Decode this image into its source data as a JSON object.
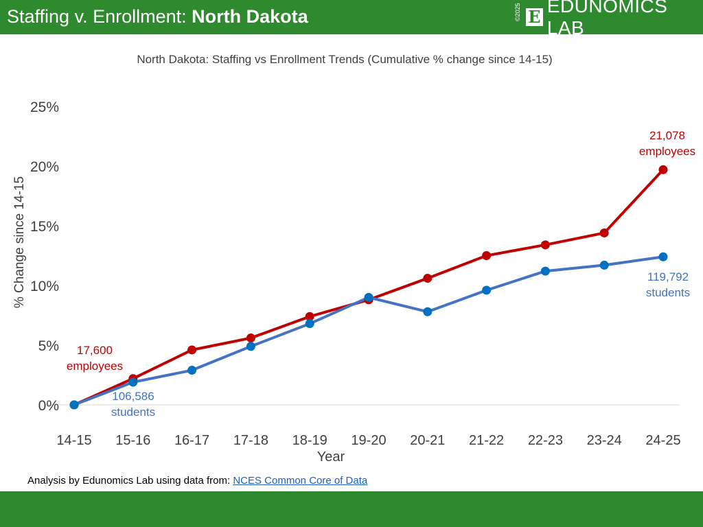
{
  "header": {
    "title_prefix": "Staffing v. Enrollment: ",
    "title_state": "North Dakota",
    "logo_copyright": "©2025",
    "logo_letter": "E",
    "logo_name": "EDUNOMICS LAB"
  },
  "source": {
    "prefix": "Analysis by Edunomics Lab using data from: ",
    "link": "NCES Common Core of Data"
  },
  "chart_data": {
    "type": "line",
    "title": "North Dakota: Staffing vs Enrollment Trends (Cumulative % change since 14-15)",
    "xlabel": "Year",
    "ylabel": "% Change since 14-15",
    "categories": [
      "14-15",
      "15-16",
      "16-17",
      "17-18",
      "18-19",
      "19-20",
      "20-21",
      "21-22",
      "22-23",
      "23-24",
      "24-25"
    ],
    "ylim": [
      0,
      25
    ],
    "yticks": [
      0,
      5,
      10,
      15,
      20,
      25
    ],
    "ytick_labels": [
      "0%",
      "5%",
      "10%",
      "15%",
      "20%",
      "25%"
    ],
    "grid": false,
    "series": [
      {
        "key": "staff",
        "color": "#c00000",
        "values": [
          0,
          2.2,
          4.6,
          5.6,
          7.4,
          8.8,
          10.6,
          12.5,
          13.4,
          14.4,
          19.7
        ]
      },
      {
        "key": "students",
        "color": "#4472c4",
        "marker_color": "#0070c0",
        "values": [
          0,
          1.9,
          2.9,
          4.9,
          6.8,
          9.0,
          7.8,
          9.6,
          11.2,
          11.7,
          12.4
        ]
      }
    ],
    "annotations": {
      "staff_start": [
        "17,600",
        "employees"
      ],
      "staff_end": [
        "21,078",
        "employees"
      ],
      "students_start": [
        "106,586",
        "students"
      ],
      "students_end": [
        "119,792",
        "students"
      ]
    }
  }
}
